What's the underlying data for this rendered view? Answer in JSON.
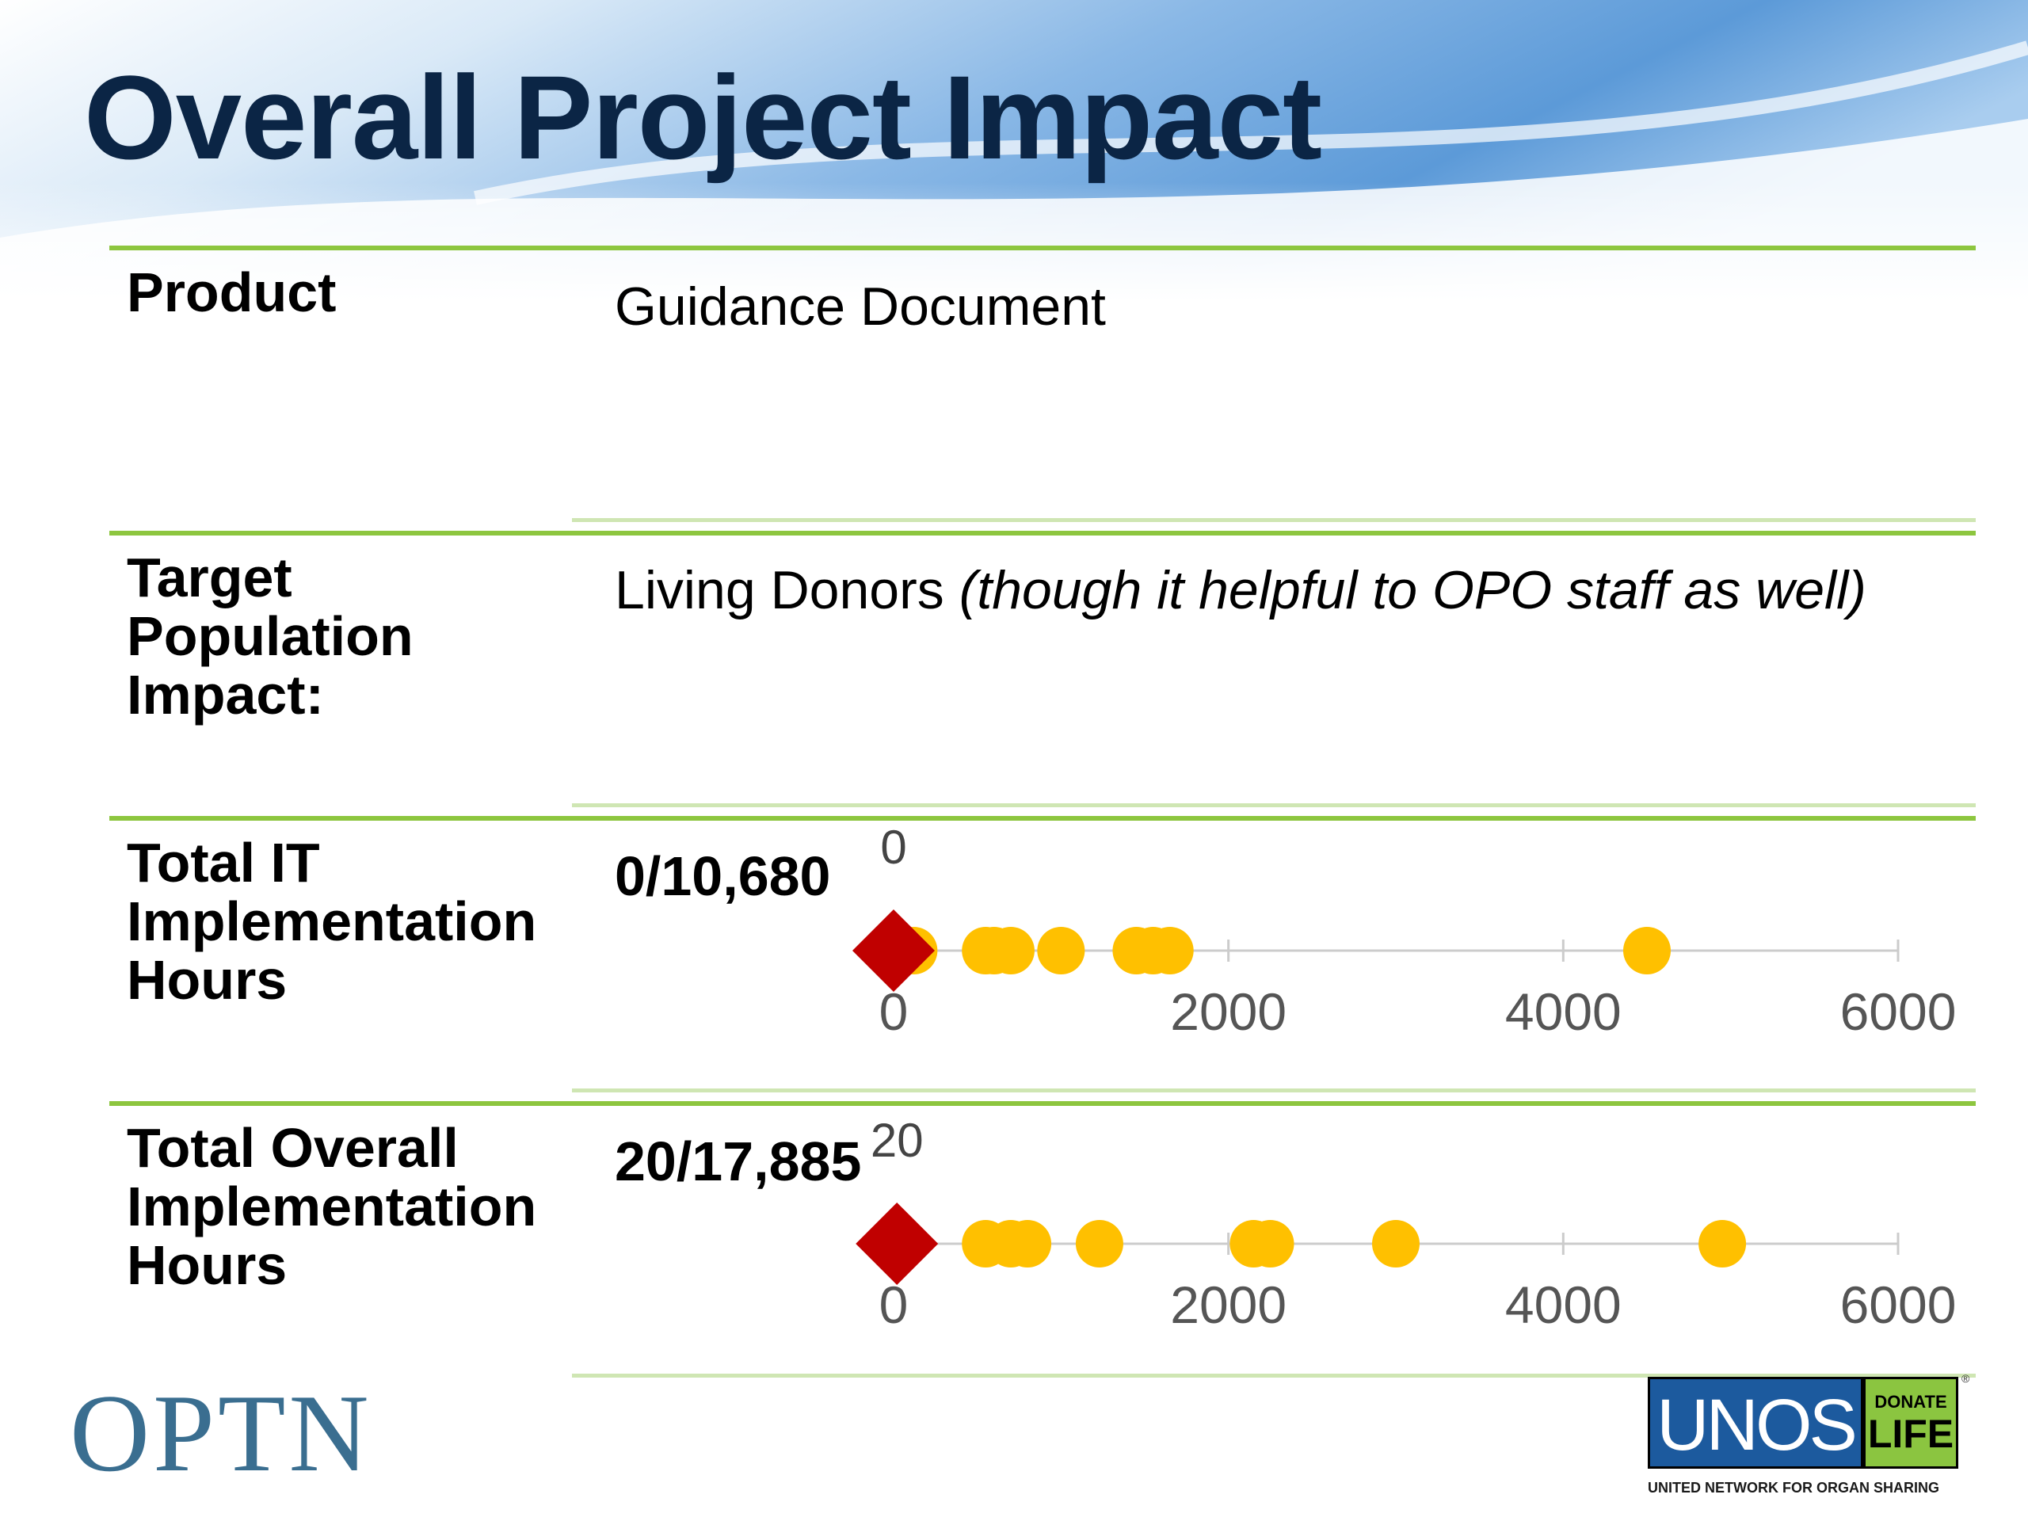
{
  "slide": {
    "title": "Overall Project Impact",
    "accent_color": "#8dc63f",
    "title_color": "#0b2545"
  },
  "rows": {
    "product": {
      "label": "Product",
      "value": "Guidance Document"
    },
    "target": {
      "label_lines": [
        "Target",
        "Population",
        "Impact:"
      ],
      "value": "Living Donors",
      "value_note": "(though it helpful to OPO staff as well)"
    },
    "it_hours": {
      "label_lines": [
        "Total IT",
        "Implementation",
        "Hours"
      ],
      "value": "0/10,680"
    },
    "overall_hours": {
      "label_lines": [
        "Total Overall",
        "Implementation",
        "Hours"
      ],
      "value": "20/17,885"
    }
  },
  "chart_data": [
    {
      "type": "scatter",
      "title": "Total IT Implementation Hours",
      "xlim": [
        0,
        6000
      ],
      "ticks": [
        0,
        2000,
        4000,
        6000
      ],
      "tick_labels": [
        "0",
        "2000",
        "4000",
        "6000"
      ],
      "marker": {
        "value": 0,
        "label": "0",
        "color": "#c00000",
        "shape": "diamond"
      },
      "points": [
        80,
        120,
        550,
        600,
        700,
        1000,
        1450,
        1550,
        1650,
        4500
      ],
      "point_color": "#ffc000"
    },
    {
      "type": "scatter",
      "title": "Total Overall Implementation Hours",
      "xlim": [
        0,
        6000
      ],
      "ticks": [
        0,
        2000,
        4000,
        6000
      ],
      "tick_labels": [
        "0",
        "2000",
        "4000",
        "6000"
      ],
      "marker": {
        "value": 20,
        "label": "20",
        "color": "#c00000",
        "shape": "diamond"
      },
      "points": [
        550,
        700,
        800,
        1230,
        2150,
        2250,
        3000,
        4950
      ],
      "point_color": "#ffc000"
    }
  ],
  "footer": {
    "optn_logo": "OPTN",
    "unos_logo": "UNOS",
    "donate_life_top": "DONATE",
    "donate_life_bottom": "LIFE",
    "registered": "®",
    "unos_tagline": "UNITED NETWORK FOR ORGAN SHARING"
  }
}
